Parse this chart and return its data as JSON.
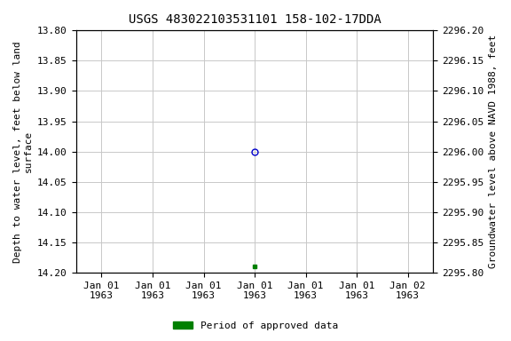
{
  "title": "USGS 483022103531101 158-102-17DDA",
  "ylabel_left": "Depth to water level, feet below land\nsurface",
  "ylabel_right": "Groundwater level above NAVD 1988, feet",
  "ylim_left": [
    13.8,
    14.2
  ],
  "ylim_right": [
    2295.8,
    2296.2
  ],
  "y_ticks_left": [
    13.8,
    13.85,
    13.9,
    13.95,
    14.0,
    14.05,
    14.1,
    14.15,
    14.2
  ],
  "y_ticks_right": [
    2295.8,
    2295.85,
    2295.9,
    2295.95,
    2296.0,
    2296.05,
    2296.1,
    2296.15,
    2296.2
  ],
  "point_depth": 14.0,
  "point_color_circle": "#0000cc",
  "green_square_depth": 14.19,
  "green_square_color": "#008000",
  "legend_label": "Period of approved data",
  "legend_color": "#008000",
  "background_color": "#ffffff",
  "grid_color": "#c8c8c8",
  "title_fontsize": 10,
  "axis_label_fontsize": 8,
  "tick_fontsize": 8,
  "x_tick_labels": [
    "Jan 01\n1963",
    "Jan 01\n1963",
    "Jan 01\n1963",
    "Jan 01\n1963",
    "Jan 01\n1963",
    "Jan 01\n1963",
    "Jan 02\n1963"
  ],
  "x_tick_positions": [
    0,
    4,
    8,
    12,
    16,
    20,
    24
  ],
  "point_x": 12,
  "green_x": 12,
  "xlim": [
    -2,
    26
  ]
}
